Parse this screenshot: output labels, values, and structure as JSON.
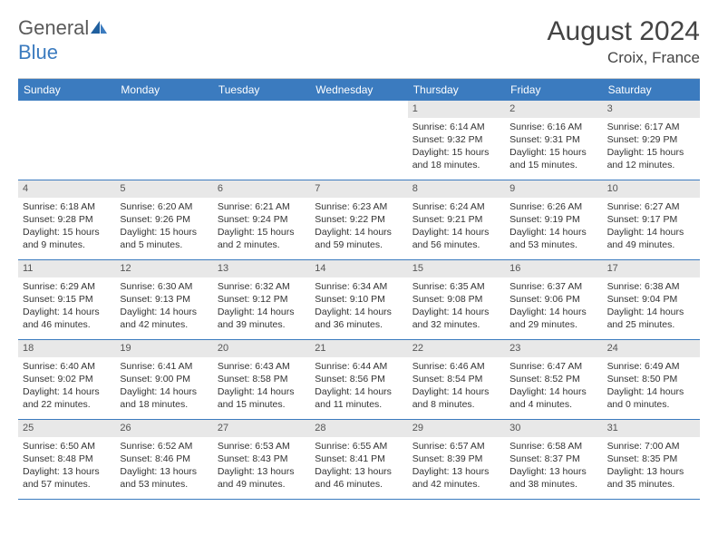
{
  "brand": {
    "part1": "General",
    "part2": "Blue"
  },
  "title": "August 2024",
  "location": "Croix, France",
  "colors": {
    "header_bg": "#3b7bbf",
    "header_text": "#ffffff",
    "daynum_bg": "#e8e8e8",
    "cell_border": "#3b7bbf",
    "text": "#333333"
  },
  "day_names": [
    "Sunday",
    "Monday",
    "Tuesday",
    "Wednesday",
    "Thursday",
    "Friday",
    "Saturday"
  ],
  "first_weekday_index": 4,
  "days": [
    {
      "n": 1,
      "sunrise": "6:14 AM",
      "sunset": "9:32 PM",
      "daylight": "15 hours and 18 minutes."
    },
    {
      "n": 2,
      "sunrise": "6:16 AM",
      "sunset": "9:31 PM",
      "daylight": "15 hours and 15 minutes."
    },
    {
      "n": 3,
      "sunrise": "6:17 AM",
      "sunset": "9:29 PM",
      "daylight": "15 hours and 12 minutes."
    },
    {
      "n": 4,
      "sunrise": "6:18 AM",
      "sunset": "9:28 PM",
      "daylight": "15 hours and 9 minutes."
    },
    {
      "n": 5,
      "sunrise": "6:20 AM",
      "sunset": "9:26 PM",
      "daylight": "15 hours and 5 minutes."
    },
    {
      "n": 6,
      "sunrise": "6:21 AM",
      "sunset": "9:24 PM",
      "daylight": "15 hours and 2 minutes."
    },
    {
      "n": 7,
      "sunrise": "6:23 AM",
      "sunset": "9:22 PM",
      "daylight": "14 hours and 59 minutes."
    },
    {
      "n": 8,
      "sunrise": "6:24 AM",
      "sunset": "9:21 PM",
      "daylight": "14 hours and 56 minutes."
    },
    {
      "n": 9,
      "sunrise": "6:26 AM",
      "sunset": "9:19 PM",
      "daylight": "14 hours and 53 minutes."
    },
    {
      "n": 10,
      "sunrise": "6:27 AM",
      "sunset": "9:17 PM",
      "daylight": "14 hours and 49 minutes."
    },
    {
      "n": 11,
      "sunrise": "6:29 AM",
      "sunset": "9:15 PM",
      "daylight": "14 hours and 46 minutes."
    },
    {
      "n": 12,
      "sunrise": "6:30 AM",
      "sunset": "9:13 PM",
      "daylight": "14 hours and 42 minutes."
    },
    {
      "n": 13,
      "sunrise": "6:32 AM",
      "sunset": "9:12 PM",
      "daylight": "14 hours and 39 minutes."
    },
    {
      "n": 14,
      "sunrise": "6:34 AM",
      "sunset": "9:10 PM",
      "daylight": "14 hours and 36 minutes."
    },
    {
      "n": 15,
      "sunrise": "6:35 AM",
      "sunset": "9:08 PM",
      "daylight": "14 hours and 32 minutes."
    },
    {
      "n": 16,
      "sunrise": "6:37 AM",
      "sunset": "9:06 PM",
      "daylight": "14 hours and 29 minutes."
    },
    {
      "n": 17,
      "sunrise": "6:38 AM",
      "sunset": "9:04 PM",
      "daylight": "14 hours and 25 minutes."
    },
    {
      "n": 18,
      "sunrise": "6:40 AM",
      "sunset": "9:02 PM",
      "daylight": "14 hours and 22 minutes."
    },
    {
      "n": 19,
      "sunrise": "6:41 AM",
      "sunset": "9:00 PM",
      "daylight": "14 hours and 18 minutes."
    },
    {
      "n": 20,
      "sunrise": "6:43 AM",
      "sunset": "8:58 PM",
      "daylight": "14 hours and 15 minutes."
    },
    {
      "n": 21,
      "sunrise": "6:44 AM",
      "sunset": "8:56 PM",
      "daylight": "14 hours and 11 minutes."
    },
    {
      "n": 22,
      "sunrise": "6:46 AM",
      "sunset": "8:54 PM",
      "daylight": "14 hours and 8 minutes."
    },
    {
      "n": 23,
      "sunrise": "6:47 AM",
      "sunset": "8:52 PM",
      "daylight": "14 hours and 4 minutes."
    },
    {
      "n": 24,
      "sunrise": "6:49 AM",
      "sunset": "8:50 PM",
      "daylight": "14 hours and 0 minutes."
    },
    {
      "n": 25,
      "sunrise": "6:50 AM",
      "sunset": "8:48 PM",
      "daylight": "13 hours and 57 minutes."
    },
    {
      "n": 26,
      "sunrise": "6:52 AM",
      "sunset": "8:46 PM",
      "daylight": "13 hours and 53 minutes."
    },
    {
      "n": 27,
      "sunrise": "6:53 AM",
      "sunset": "8:43 PM",
      "daylight": "13 hours and 49 minutes."
    },
    {
      "n": 28,
      "sunrise": "6:55 AM",
      "sunset": "8:41 PM",
      "daylight": "13 hours and 46 minutes."
    },
    {
      "n": 29,
      "sunrise": "6:57 AM",
      "sunset": "8:39 PM",
      "daylight": "13 hours and 42 minutes."
    },
    {
      "n": 30,
      "sunrise": "6:58 AM",
      "sunset": "8:37 PM",
      "daylight": "13 hours and 38 minutes."
    },
    {
      "n": 31,
      "sunrise": "7:00 AM",
      "sunset": "8:35 PM",
      "daylight": "13 hours and 35 minutes."
    }
  ],
  "labels": {
    "sunrise": "Sunrise:",
    "sunset": "Sunset:",
    "daylight": "Daylight:"
  }
}
